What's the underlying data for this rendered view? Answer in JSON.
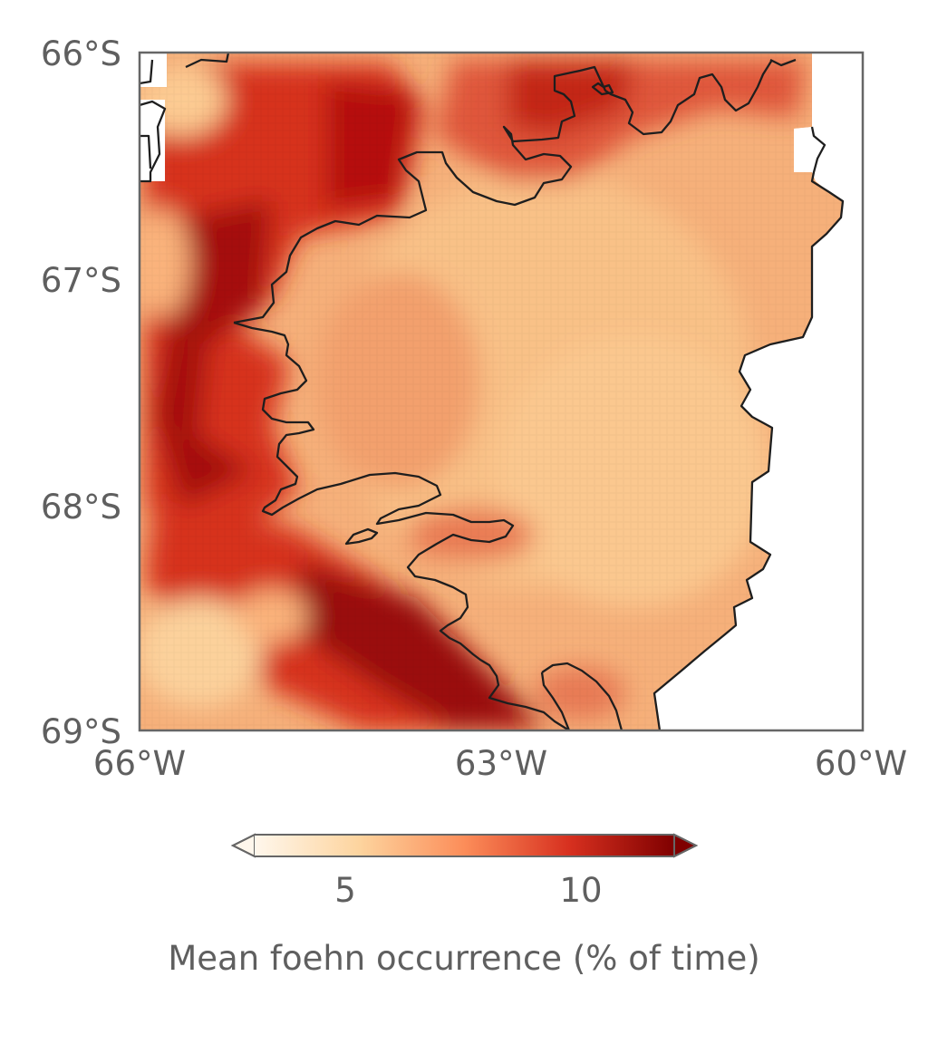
{
  "map": {
    "lat_ticks": [
      "66°S",
      "67°S",
      "68°S",
      "69°S"
    ],
    "lon_ticks": [
      "66°W",
      "63°W",
      "60°W"
    ],
    "extent": {
      "lon_min": -66,
      "lon_max": -60,
      "lat_max": -66,
      "lat_min": -69
    },
    "field": "Mean foehn occurrence (% of time)",
    "colormap": "OrRd",
    "coastline_color": "#1e1e1e",
    "no_data_color": "#ffffff"
  },
  "colorbar": {
    "ticks": [
      "5",
      "10"
    ],
    "tick_values": [
      5,
      10
    ],
    "range": [
      2,
      12
    ],
    "extend": "both",
    "label": "Mean foehn occurrence (% of time)",
    "colors": [
      "#fff7ec",
      "#fdd49e",
      "#fc8d59",
      "#d7301f",
      "#7f0000"
    ]
  }
}
